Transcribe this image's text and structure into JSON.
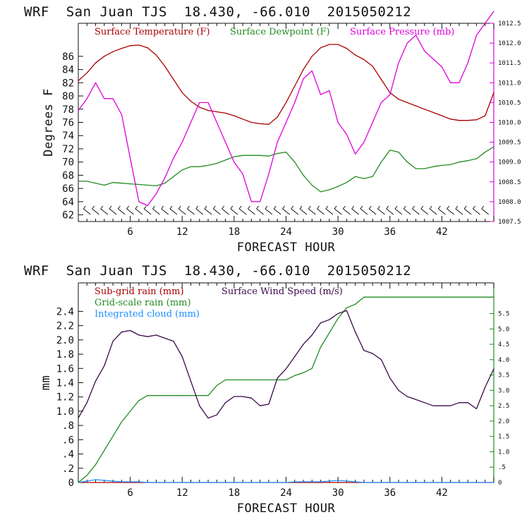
{
  "panels": [
    {
      "title": "WRF  San Juan TJS  18.430, -66.010  2015050212",
      "xlabel": "FORECAST HOUR",
      "ylabel": "Degrees F",
      "xlim": [
        0,
        48
      ],
      "xticks": [
        6,
        12,
        18,
        24,
        30,
        36,
        42
      ],
      "yleft": {
        "lim": [
          61,
          91
        ],
        "ticks": [
          62,
          64,
          66,
          68,
          70,
          72,
          74,
          76,
          78,
          80,
          82,
          84,
          86
        ]
      },
      "yright": {
        "lim": [
          1007.5,
          1012.5
        ],
        "ticks": [
          "1007.5",
          "1008.0",
          "1008.5",
          "1009.0",
          "1009.5",
          "1010.0",
          "1010.5",
          "1011.0",
          "1011.5",
          "1012.0",
          "1012.5"
        ]
      },
      "legend": [
        {
          "label": "Surface Temperature (F)",
          "color": "#aa0000"
        },
        {
          "label": "Surface Dewpoint (F)",
          "color": "#228b22"
        },
        {
          "label": "Surface Pressure (mb)",
          "color": "#dd00dd"
        }
      ]
    },
    {
      "title": "WRF  San Juan TJS  18.430, -66.010  2015050212",
      "xlabel": "FORECAST HOUR",
      "ylabel": "mm",
      "xlim": [
        0,
        48
      ],
      "xticks": [
        6,
        12,
        18,
        24,
        30,
        36,
        42
      ],
      "yleft": {
        "lim": [
          0,
          2.8
        ],
        "ticks": [
          "0",
          ".2",
          ".4",
          ".6",
          ".8",
          "1.0",
          "1.2",
          "1.4",
          "1.6",
          "1.8",
          "2.0",
          "2.2",
          "2.4"
        ]
      },
      "yright": {
        "lim": [
          0,
          6.5
        ],
        "ticks": [
          "0",
          ".5",
          "1.0",
          "1.5",
          "2.0",
          "2.5",
          "3.0",
          "3.5",
          "4.0",
          "4.5",
          "5.0",
          "5.5"
        ]
      },
      "legend": [
        {
          "label": "Sub-grid rain (mm)",
          "color": "#aa0000"
        },
        {
          "label": "Surface Wind Speed (m/s)",
          "color": "#3a0a4a"
        },
        {
          "label": "Grid-scale rain (mm)",
          "color": "#228b22"
        },
        {
          "label": "Integrated cloud (mm)",
          "color": "#1e90ff"
        }
      ]
    }
  ],
  "chart_data": [
    {
      "type": "line",
      "x": [
        0,
        1,
        2,
        3,
        4,
        5,
        6,
        7,
        8,
        9,
        10,
        11,
        12,
        13,
        14,
        15,
        16,
        17,
        18,
        19,
        20,
        21,
        22,
        23,
        24,
        25,
        26,
        27,
        28,
        29,
        30,
        31,
        32,
        33,
        34,
        35,
        36,
        37,
        38,
        39,
        40,
        41,
        42,
        43,
        44,
        45,
        46,
        47,
        48
      ],
      "series": [
        {
          "name": "Surface Temperature (F)",
          "axis": "left",
          "color": "#aa0000",
          "values": [
            82.3,
            83.5,
            85,
            86,
            86.7,
            87.2,
            87.6,
            87.7,
            87.3,
            86.2,
            84.5,
            82.5,
            80.5,
            79.2,
            78.3,
            77.8,
            77.6,
            77.4,
            77,
            76.5,
            76,
            75.8,
            75.7,
            76.8,
            79,
            81.5,
            84,
            86,
            87.3,
            87.8,
            87.8,
            87.2,
            86.2,
            85.5,
            84.5,
            82.5,
            80.5,
            79.5,
            79,
            78.5,
            78,
            77.5,
            77,
            76.5,
            76.3,
            76.3,
            76.4,
            77,
            80.5
          ]
        },
        {
          "name": "Surface Dewpoint (F)",
          "axis": "left",
          "color": "#228b22",
          "values": [
            67.1,
            67.1,
            66.8,
            66.5,
            66.9,
            66.8,
            66.7,
            66.6,
            66.5,
            66.4,
            66.8,
            67.8,
            68.8,
            69.3,
            69.3,
            69.5,
            69.8,
            70.3,
            70.8,
            71,
            71,
            71,
            70.9,
            71.3,
            71.5,
            70,
            68,
            66.5,
            65.5,
            65.8,
            66.3,
            66.9,
            67.8,
            67.5,
            67.8,
            70,
            71.8,
            71.5,
            70,
            69,
            69,
            69.3,
            69.5,
            69.6,
            70,
            70.2,
            70.5,
            71.5,
            72.3
          ]
        },
        {
          "name": "Surface Pressure (mb)",
          "axis": "right",
          "color": "#dd00dd",
          "values": [
            1010.3,
            1010.6,
            1011.0,
            1010.6,
            1010.6,
            1010.2,
            1009.1,
            1008.0,
            1007.9,
            1008.2,
            1008.6,
            1009.1,
            1009.5,
            1010.0,
            1010.5,
            1010.5,
            1010.0,
            1009.5,
            1009.0,
            1008.7,
            1008.0,
            1008.0,
            1008.7,
            1009.5,
            1010.0,
            1010.5,
            1011.1,
            1011.3,
            1010.7,
            1010.8,
            1010.0,
            1009.7,
            1009.2,
            1009.5,
            1010.0,
            1010.5,
            1010.7,
            1011.5,
            1012.0,
            1012.2,
            1011.8,
            1011.6,
            1011.4,
            1011.0,
            1011.0,
            1011.5,
            1012.2,
            1012.5,
            1012.8
          ]
        }
      ],
      "xlim": [
        0,
        48
      ],
      "ylim_left": [
        61,
        91
      ],
      "ylim_right": [
        1007.5,
        1012.5
      ],
      "xlabel": "FORECAST HOUR",
      "ylabel": "Degrees F",
      "title": "WRF  San Juan TJS  18.430, -66.010  2015050212",
      "wind_barbs": "row of wind barbs along the bottom of the panel",
      "grid": false,
      "legend": "top"
    },
    {
      "type": "line",
      "x": [
        0,
        1,
        2,
        3,
        4,
        5,
        6,
        7,
        8,
        9,
        10,
        11,
        12,
        13,
        14,
        15,
        16,
        17,
        18,
        19,
        20,
        21,
        22,
        23,
        24,
        25,
        26,
        27,
        28,
        29,
        30,
        31,
        32,
        33,
        34,
        35,
        36,
        37,
        38,
        39,
        40,
        41,
        42,
        43,
        44,
        45,
        46,
        47,
        48
      ],
      "series": [
        {
          "name": "Grid-scale rain (mm)",
          "axis": "left",
          "color": "#228b22",
          "values": [
            0,
            0.1,
            0.25,
            0.45,
            0.65,
            0.85,
            1.0,
            1.15,
            1.22,
            1.22,
            1.22,
            1.22,
            1.22,
            1.22,
            1.22,
            1.22,
            1.36,
            1.44,
            1.44,
            1.44,
            1.44,
            1.44,
            1.44,
            1.44,
            1.44,
            1.5,
            1.54,
            1.6,
            1.9,
            2.1,
            2.3,
            2.45,
            2.5,
            2.6,
            2.6,
            2.6,
            2.6,
            2.6,
            2.6,
            2.6,
            2.6,
            2.6,
            2.6,
            2.6,
            2.6,
            2.6,
            2.6,
            2.6,
            2.6
          ]
        },
        {
          "name": "Sub-grid rain (mm)",
          "axis": "left",
          "color": "#aa0000",
          "values": [
            0,
            0,
            0,
            0,
            0,
            0,
            0,
            0,
            0,
            0,
            0,
            0,
            0,
            0,
            0,
            0,
            0,
            0,
            0,
            0,
            0,
            0,
            0,
            0,
            0,
            0,
            0,
            0,
            0,
            0,
            0,
            0,
            0,
            0,
            0,
            0,
            0,
            0,
            0,
            0,
            0,
            0,
            0,
            0,
            0,
            0,
            0,
            0,
            0
          ]
        },
        {
          "name": "Integrated cloud (mm)",
          "axis": "left",
          "color": "#1e90ff",
          "values": [
            0,
            0.02,
            0.04,
            0.03,
            0.02,
            0.01,
            0.01,
            0.01,
            0,
            0,
            0,
            0,
            0,
            0,
            0,
            0,
            0,
            0,
            0,
            0,
            0,
            0,
            0,
            0,
            0,
            0.01,
            0.01,
            0.01,
            0.01,
            0.02,
            0.03,
            0.02,
            0.01,
            0,
            0,
            0,
            0,
            0,
            0,
            0,
            0,
            0,
            0,
            0,
            0,
            0,
            0,
            0,
            0
          ]
        },
        {
          "name": "Surface Wind Speed (m/s)",
          "axis": "right",
          "color": "#3a0a4a",
          "values": [
            2.1,
            2.6,
            3.3,
            3.8,
            4.6,
            4.9,
            4.95,
            4.8,
            4.75,
            4.8,
            4.7,
            4.6,
            4.1,
            3.3,
            2.5,
            2.1,
            2.2,
            2.6,
            2.8,
            2.8,
            2.75,
            2.5,
            2.55,
            3.4,
            3.7,
            4.1,
            4.5,
            4.8,
            5.2,
            5.3,
            5.5,
            5.6,
            4.9,
            4.3,
            4.2,
            4.0,
            3.4,
            3.0,
            2.8,
            2.7,
            2.6,
            2.5,
            2.5,
            2.5,
            2.6,
            2.6,
            2.4,
            3.1,
            3.7
          ]
        }
      ],
      "xlim": [
        0,
        48
      ],
      "ylim_left": [
        0,
        2.8
      ],
      "ylim_right": [
        0,
        6.5
      ],
      "xlabel": "FORECAST HOUR",
      "ylabel": "mm",
      "title": "WRF  San Juan TJS  18.430, -66.010  2015050212",
      "grid": false,
      "legend": "top"
    }
  ]
}
